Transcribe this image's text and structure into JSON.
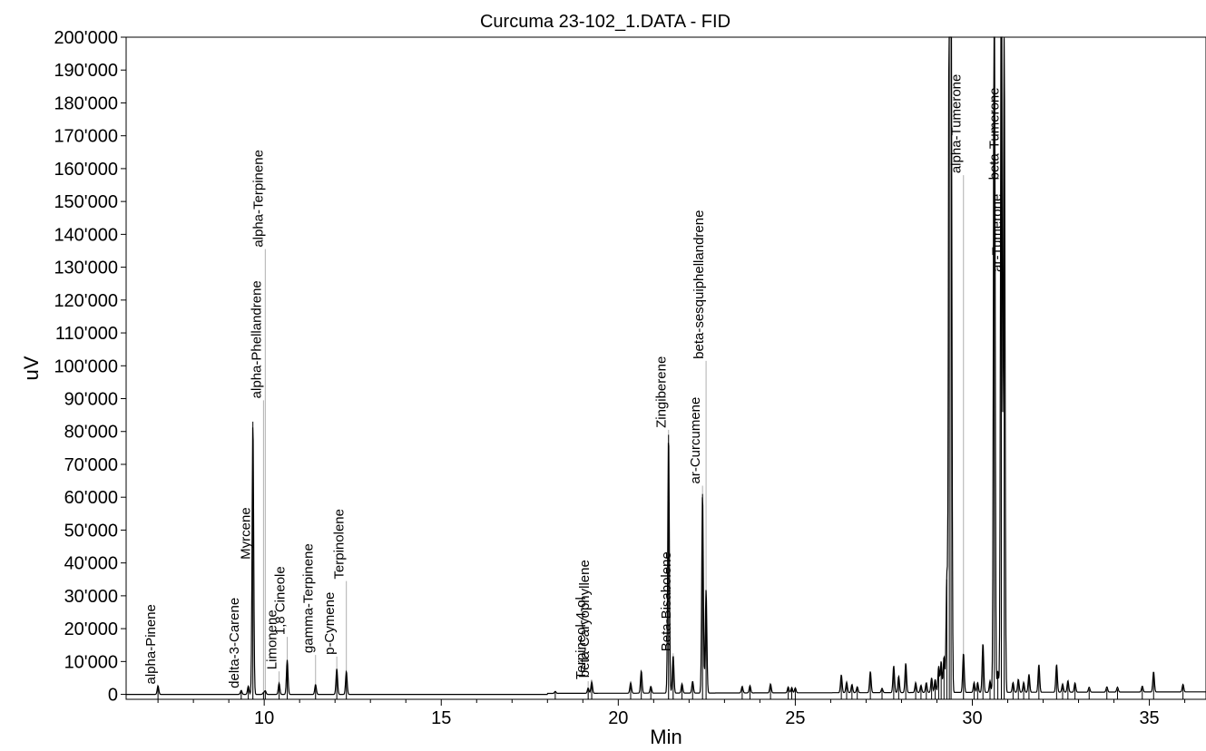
{
  "chart_data": {
    "type": "line",
    "title": "Curcuma 23-102_1.DATA - FID",
    "xlabel": "Min",
    "ylabel": "uV",
    "xlim": [
      6.1,
      36.6
    ],
    "ylim": [
      -1500,
      200000
    ],
    "x_ticks": [
      10,
      15,
      20,
      25,
      30,
      35
    ],
    "y_ticks": [
      {
        "value": 0,
        "label": "0"
      },
      {
        "value": 10000,
        "label": "10'000"
      },
      {
        "value": 20000,
        "label": "20'000"
      },
      {
        "value": 30000,
        "label": "30'000"
      },
      {
        "value": 40000,
        "label": "40'000"
      },
      {
        "value": 50000,
        "label": "50'000"
      },
      {
        "value": 60000,
        "label": "60'000"
      },
      {
        "value": 70000,
        "label": "70'000"
      },
      {
        "value": 80000,
        "label": "80'000"
      },
      {
        "value": 90000,
        "label": "90'000"
      },
      {
        "value": 100000,
        "label": "100'000"
      },
      {
        "value": 110000,
        "label": "110'000"
      },
      {
        "value": 120000,
        "label": "120'000"
      },
      {
        "value": 130000,
        "label": "130'000"
      },
      {
        "value": 140000,
        "label": "140'000"
      },
      {
        "value": 150000,
        "label": "150'000"
      },
      {
        "value": 160000,
        "label": "160'000"
      },
      {
        "value": 170000,
        "label": "170'000"
      },
      {
        "value": 180000,
        "label": "180'000"
      },
      {
        "value": 190000,
        "label": "190'000"
      },
      {
        "value": 200000,
        "label": "200'000"
      }
    ],
    "grid": false,
    "legend": "none",
    "line_color": "#000000",
    "marker_color": "#b0b0b0",
    "peaks": [
      {
        "rt": 7.0,
        "height": 2600,
        "name": "alpha-Pinene",
        "label_y": 2500
      },
      {
        "rt": 9.35,
        "height": 1200,
        "name": "delta-3-Carene",
        "label_y": 1300
      },
      {
        "rt": 9.55,
        "height": 2500,
        "name": "",
        "label_y": 0
      },
      {
        "rt": 9.68,
        "height": 83000,
        "name": "Myrcene",
        "label_y": 40500
      },
      {
        "rt": 9.98,
        "height": 500,
        "name": "alpha-Phellandrene",
        "label_y": 89500
      },
      {
        "rt": 10.03,
        "height": 1100,
        "name": "alpha-Terpinene",
        "label_y": 135500
      },
      {
        "rt": 10.42,
        "height": 3400,
        "name": "Limonene",
        "label_y": 7000
      },
      {
        "rt": 10.65,
        "height": 10500,
        "name": "1,8 Cineole",
        "label_y": 17500
      },
      {
        "rt": 11.45,
        "height": 3000,
        "name": "gamma-Terpinene",
        "label_y": 12000
      },
      {
        "rt": 12.05,
        "height": 7800,
        "name": "p-Cymene",
        "label_y": 11500
      },
      {
        "rt": 12.32,
        "height": 7000,
        "name": "Terpinolene",
        "label_y": 34500
      },
      {
        "rt": 18.22,
        "height": 600,
        "name": "",
        "label_y": 0
      },
      {
        "rt": 19.15,
        "height": 1600,
        "name": "Terpineol-4-ol",
        "label_y": 4000
      },
      {
        "rt": 19.25,
        "height": 3500,
        "name": "beta-Caryophyllene",
        "label_y": 4500
      },
      {
        "rt": 20.35,
        "height": 3200,
        "name": "",
        "label_y": 0
      },
      {
        "rt": 20.65,
        "height": 6800,
        "name": "",
        "label_y": 0
      },
      {
        "rt": 20.92,
        "height": 2100,
        "name": "",
        "label_y": 0
      },
      {
        "rt": 21.42,
        "height": 79000,
        "name": "Zingiberene",
        "label_y": 80500
      },
      {
        "rt": 21.55,
        "height": 11500,
        "name": "Beta-Bisabolene",
        "label_y": 12500
      },
      {
        "rt": 21.8,
        "height": 2800,
        "name": "",
        "label_y": 0
      },
      {
        "rt": 22.1,
        "height": 3600,
        "name": "",
        "label_y": 0
      },
      {
        "rt": 22.38,
        "height": 61000,
        "name": "ar-Curcumene",
        "label_y": 63500
      },
      {
        "rt": 22.48,
        "height": 31500,
        "name": "beta-sesquiphellandrene",
        "label_y": 101500
      },
      {
        "rt": 23.5,
        "height": 2000,
        "name": "",
        "label_y": 0
      },
      {
        "rt": 23.72,
        "height": 2200,
        "name": "",
        "label_y": 0
      },
      {
        "rt": 24.3,
        "height": 2700,
        "name": "",
        "label_y": 0
      },
      {
        "rt": 24.8,
        "height": 1800,
        "name": "",
        "label_y": 0
      },
      {
        "rt": 24.9,
        "height": 1600,
        "name": "",
        "label_y": 0
      },
      {
        "rt": 25.0,
        "height": 1500,
        "name": "",
        "label_y": 0
      },
      {
        "rt": 26.3,
        "height": 5500,
        "name": "",
        "label_y": 0
      },
      {
        "rt": 26.45,
        "height": 3200,
        "name": "",
        "label_y": 0
      },
      {
        "rt": 26.6,
        "height": 2500,
        "name": "",
        "label_y": 0
      },
      {
        "rt": 26.75,
        "height": 1800,
        "name": "",
        "label_y": 0
      },
      {
        "rt": 27.12,
        "height": 6500,
        "name": "",
        "label_y": 0
      },
      {
        "rt": 27.45,
        "height": 1300,
        "name": "",
        "label_y": 0
      },
      {
        "rt": 27.78,
        "height": 8200,
        "name": "",
        "label_y": 0
      },
      {
        "rt": 27.92,
        "height": 5000,
        "name": "",
        "label_y": 0
      },
      {
        "rt": 28.12,
        "height": 9000,
        "name": "",
        "label_y": 0
      },
      {
        "rt": 28.4,
        "height": 3000,
        "name": "",
        "label_y": 0
      },
      {
        "rt": 28.55,
        "height": 2200,
        "name": "",
        "label_y": 0
      },
      {
        "rt": 28.7,
        "height": 3000,
        "name": "",
        "label_y": 0
      },
      {
        "rt": 28.85,
        "height": 4500,
        "name": "",
        "label_y": 0
      },
      {
        "rt": 28.95,
        "height": 4000,
        "name": "",
        "label_y": 0
      },
      {
        "rt": 29.05,
        "height": 8000,
        "name": "",
        "label_y": 0
      },
      {
        "rt": 29.12,
        "height": 9500,
        "name": "",
        "label_y": 0
      },
      {
        "rt": 29.2,
        "height": 11000,
        "name": "",
        "label_y": 0
      },
      {
        "rt": 29.28,
        "height": 35000,
        "name": "",
        "label_y": 0
      },
      {
        "rt": 29.35,
        "height": 240000,
        "name": "",
        "label_y": 0
      },
      {
        "rt": 29.4,
        "height": 220000,
        "name": "",
        "label_y": 0
      },
      {
        "rt": 29.75,
        "height": 12000,
        "name": "alpha-Tumerone",
        "label_y": 158000
      },
      {
        "rt": 30.05,
        "height": 3000,
        "name": "",
        "label_y": 0
      },
      {
        "rt": 30.15,
        "height": 3000,
        "name": "",
        "label_y": 0
      },
      {
        "rt": 30.3,
        "height": 15000,
        "name": "",
        "label_y": 0
      },
      {
        "rt": 30.5,
        "height": 3500,
        "name": "",
        "label_y": 0
      },
      {
        "rt": 30.62,
        "height": 240000,
        "name": "",
        "label_y": 0
      },
      {
        "rt": 30.72,
        "height": 6500,
        "name": "",
        "label_y": 0
      },
      {
        "rt": 30.82,
        "height": 240000,
        "name": "beta-Tumerone",
        "label_y": 156000
      },
      {
        "rt": 30.9,
        "height": 200000,
        "name": "ar-Tumerone",
        "label_y": 128000
      },
      {
        "rt": 31.15,
        "height": 3000,
        "name": "",
        "label_y": 0
      },
      {
        "rt": 31.3,
        "height": 4000,
        "name": "",
        "label_y": 0
      },
      {
        "rt": 31.45,
        "height": 3000,
        "name": "",
        "label_y": 0
      },
      {
        "rt": 31.6,
        "height": 5500,
        "name": "",
        "label_y": 0
      },
      {
        "rt": 31.88,
        "height": 8500,
        "name": "",
        "label_y": 0
      },
      {
        "rt": 32.38,
        "height": 8500,
        "name": "",
        "label_y": 0
      },
      {
        "rt": 32.55,
        "height": 2500,
        "name": "",
        "label_y": 0
      },
      {
        "rt": 32.7,
        "height": 3500,
        "name": "",
        "label_y": 0
      },
      {
        "rt": 32.9,
        "height": 2800,
        "name": "",
        "label_y": 0
      },
      {
        "rt": 33.3,
        "height": 1500,
        "name": "",
        "label_y": 0
      },
      {
        "rt": 33.8,
        "height": 1600,
        "name": "",
        "label_y": 0
      },
      {
        "rt": 34.1,
        "height": 1500,
        "name": "",
        "label_y": 0
      },
      {
        "rt": 34.8,
        "height": 1800,
        "name": "",
        "label_y": 0
      },
      {
        "rt": 35.12,
        "height": 6200,
        "name": "",
        "label_y": 0
      },
      {
        "rt": 35.95,
        "height": 2300,
        "name": "",
        "label_y": 0
      }
    ]
  }
}
